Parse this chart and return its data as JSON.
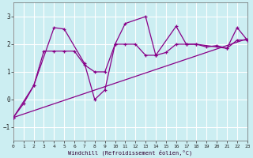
{
  "xlabel": "Windchill (Refroidissement éolien,°C)",
  "bg_color": "#cceef2",
  "line_color": "#880088",
  "grid_color": "#ffffff",
  "xlim": [
    0,
    23
  ],
  "ylim": [
    -1.5,
    3.5
  ],
  "yticks": [
    -1,
    0,
    1,
    2,
    3
  ],
  "xticks": [
    0,
    1,
    2,
    3,
    4,
    5,
    6,
    7,
    8,
    9,
    10,
    11,
    12,
    13,
    14,
    15,
    16,
    17,
    18,
    19,
    20,
    21,
    22,
    23
  ],
  "trend_x": [
    0,
    23
  ],
  "trend_y": [
    -0.65,
    2.2
  ],
  "smooth_x": [
    0,
    1,
    2,
    3,
    4,
    5,
    6,
    7,
    8,
    9,
    10,
    11,
    12,
    13,
    14,
    15,
    16,
    17,
    18,
    19,
    20,
    21,
    22,
    23
  ],
  "smooth_y": [
    -0.65,
    -0.15,
    0.5,
    1.75,
    1.75,
    1.75,
    1.75,
    1.25,
    1.0,
    1.0,
    2.0,
    2.0,
    2.0,
    1.6,
    1.6,
    1.7,
    2.0,
    2.0,
    2.0,
    1.9,
    1.95,
    1.85,
    2.15,
    2.15
  ],
  "spiky_x": [
    0,
    2,
    4,
    5,
    7,
    8,
    9,
    10,
    11,
    13,
    14,
    16,
    17,
    18,
    21,
    22,
    23
  ],
  "spiky_y": [
    -0.65,
    0.5,
    2.6,
    2.55,
    1.3,
    0.0,
    0.35,
    2.0,
    2.75,
    3.0,
    1.6,
    2.65,
    2.0,
    2.0,
    1.85,
    2.6,
    2.15
  ]
}
